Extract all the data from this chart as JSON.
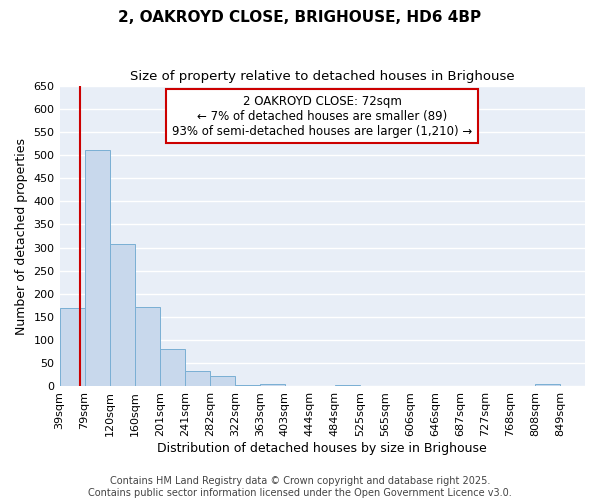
{
  "title": "2, OAKROYD CLOSE, BRIGHOUSE, HD6 4BP",
  "subtitle": "Size of property relative to detached houses in Brighouse",
  "xlabel": "Distribution of detached houses by size in Brighouse",
  "ylabel": "Number of detached properties",
  "bin_labels": [
    "39sqm",
    "79sqm",
    "120sqm",
    "160sqm",
    "201sqm",
    "241sqm",
    "282sqm",
    "322sqm",
    "363sqm",
    "403sqm",
    "444sqm",
    "484sqm",
    "525sqm",
    "565sqm",
    "606sqm",
    "646sqm",
    "687sqm",
    "727sqm",
    "768sqm",
    "808sqm",
    "849sqm"
  ],
  "bar_values": [
    170,
    510,
    308,
    172,
    80,
    33,
    22,
    4,
    6,
    0,
    0,
    4,
    0,
    0,
    0,
    0,
    0,
    0,
    0,
    5,
    0
  ],
  "bar_color": "#c8d8ec",
  "bar_edge_color": "#7aafd4",
  "background_color": "#ffffff",
  "plot_bg_color": "#e8eef7",
  "grid_color": "#ffffff",
  "vline_color": "#cc0000",
  "vline_pos": 0.825,
  "annotation_text": "2 OAKROYD CLOSE: 72sqm\n← 7% of detached houses are smaller (89)\n93% of semi-detached houses are larger (1,210) →",
  "annotation_box_color": "#ffffff",
  "annotation_border_color": "#cc0000",
  "ylim": [
    0,
    650
  ],
  "yticks": [
    0,
    50,
    100,
    150,
    200,
    250,
    300,
    350,
    400,
    450,
    500,
    550,
    600,
    650
  ],
  "footer_text": "Contains HM Land Registry data © Crown copyright and database right 2025.\nContains public sector information licensed under the Open Government Licence v3.0.",
  "title_fontsize": 11,
  "subtitle_fontsize": 9.5,
  "axis_label_fontsize": 9,
  "tick_fontsize": 8,
  "annotation_fontsize": 8.5,
  "footer_fontsize": 7
}
